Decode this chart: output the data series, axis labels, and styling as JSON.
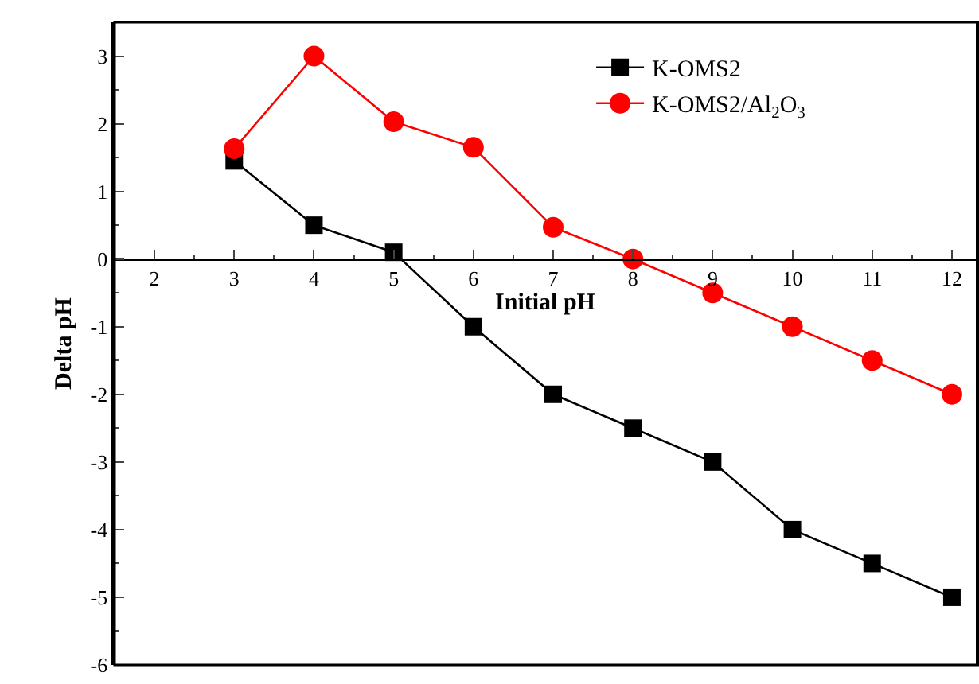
{
  "chart_data": {
    "type": "line",
    "xlabel": "Initial pH",
    "ylabel": "Delta pH",
    "x": [
      3,
      4,
      5,
      6,
      7,
      8,
      9,
      10,
      11,
      12
    ],
    "series": [
      {
        "name": "K-OMS2",
        "color": "#000000",
        "marker": "square",
        "values": [
          1.45,
          0.5,
          0.1,
          -1,
          -2,
          -2.5,
          -3,
          -4,
          -4.5,
          -5
        ]
      },
      {
        "name": "K-OMS2/Al$_{2}$O$_{3}$",
        "color": "#ff0000",
        "marker": "circle",
        "values": [
          1.63,
          3.0,
          2.03,
          1.65,
          0.47,
          0,
          -0.5,
          -1,
          -1.5,
          -2
        ]
      }
    ],
    "xlim": [
      1.5,
      12.3
    ],
    "xticks": [
      2,
      3,
      4,
      5,
      6,
      7,
      8,
      9,
      10,
      11,
      12
    ],
    "ylim": [
      -6,
      3.5
    ],
    "yticks": [
      -6,
      -5,
      -4,
      -3,
      -2,
      -1,
      0,
      1,
      2,
      3
    ],
    "legend": "top right",
    "line_style": "solid"
  }
}
